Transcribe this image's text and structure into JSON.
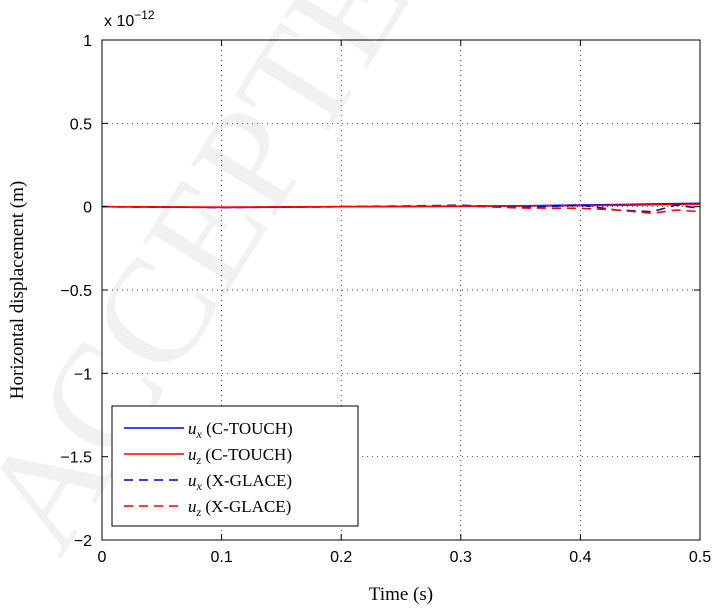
{
  "watermark": "ACCEPTED",
  "chart_data": {
    "type": "line",
    "xlabel": "Time (s)",
    "ylabel": "Horizontal displacement (m)",
    "y_exponent_label": "x 10",
    "y_exponent_power": "−12",
    "xlim": [
      0,
      0.5
    ],
    "ylim": [
      -2,
      1
    ],
    "x_ticks": [
      "0",
      "0.1",
      "0.2",
      "0.3",
      "0.4",
      "0.5"
    ],
    "y_ticks": [
      "1",
      "0.5",
      "0",
      "−0.5",
      "−1",
      "−1.5",
      "−2"
    ],
    "x_tick_values": [
      0,
      0.1,
      0.2,
      0.3,
      0.4,
      0.5
    ],
    "y_tick_values": [
      1,
      0.5,
      0,
      -0.5,
      -1,
      -1.5,
      -2
    ],
    "grid": true,
    "legend_position": "bottom-left",
    "series": [
      {
        "name": "(C-TOUCH)",
        "symbol": "u",
        "subscript": "x",
        "color": "#0000ff",
        "dash": "solid",
        "x": [
          0,
          0.1,
          0.2,
          0.3,
          0.35,
          0.4,
          0.45,
          0.5
        ],
        "y": [
          0,
          -0.005,
          0,
          0.002,
          0.005,
          0.01,
          0.015,
          0.02
        ]
      },
      {
        "name": "(C-TOUCH)",
        "symbol": "u",
        "subscript": "z",
        "color": "#ff0000",
        "dash": "solid",
        "x": [
          0,
          0.1,
          0.2,
          0.3,
          0.35,
          0.4,
          0.45,
          0.5
        ],
        "y": [
          0,
          -0.003,
          0,
          0.003,
          0.004,
          0.006,
          0.01,
          0.015
        ]
      },
      {
        "name": "(X-GLACE)",
        "symbol": "u",
        "subscript": "x",
        "color": "#0000aa",
        "dash": "dashed",
        "x": [
          0,
          0.1,
          0.2,
          0.3,
          0.35,
          0.4,
          0.43,
          0.46,
          0.48,
          0.5
        ],
        "y": [
          0,
          -0.005,
          0,
          0.008,
          -0.005,
          0.01,
          -0.02,
          -0.03,
          0.01,
          -0.01
        ]
      },
      {
        "name": "(X-GLACE)",
        "symbol": "u",
        "subscript": "z",
        "color": "#ff0000",
        "dash": "dashed",
        "x": [
          0,
          0.1,
          0.2,
          0.3,
          0.35,
          0.4,
          0.43,
          0.46,
          0.48,
          0.5
        ],
        "y": [
          0,
          -0.004,
          0,
          0.005,
          -0.008,
          -0.01,
          -0.02,
          -0.04,
          -0.02,
          -0.03
        ]
      }
    ]
  }
}
